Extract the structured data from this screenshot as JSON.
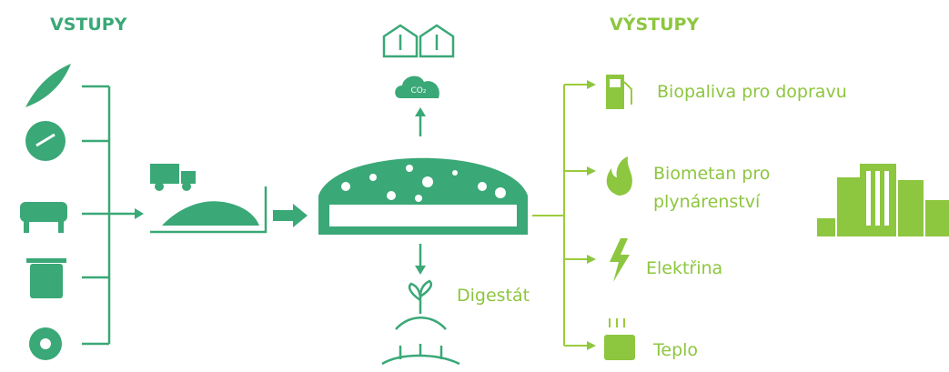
{
  "headings": {
    "inputs": "VSTUPY",
    "outputs": "VÝSTUPY"
  },
  "process": {
    "co2": "CO₂",
    "digestate": "Digestát"
  },
  "outputs": [
    {
      "lines": [
        "Biopaliva pro dopravu"
      ]
    },
    {
      "lines": [
        "Biometan pro",
        "plynárenství"
      ]
    },
    {
      "lines": [
        "Elektřina"
      ]
    },
    {
      "lines": [
        "Teplo"
      ]
    }
  ]
}
